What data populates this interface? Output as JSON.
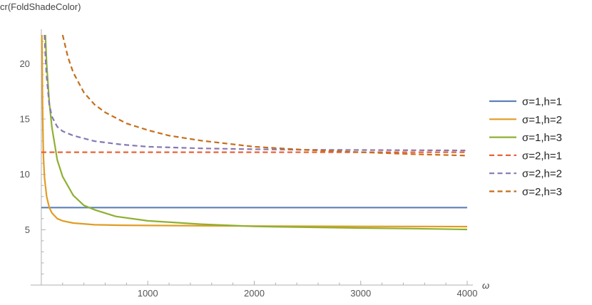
{
  "chart_data": {
    "type": "line",
    "title": "",
    "ylabel": "cr(FoldShadeColor)",
    "xlabel": "ω",
    "xlim": [
      -100,
      4000
    ],
    "ylim": [
      0,
      22.6
    ],
    "x_ticks": [
      {
        "value": 1000,
        "label": "1000"
      },
      {
        "value": 2000,
        "label": "2000"
      },
      {
        "value": 3000,
        "label": "3000"
      },
      {
        "value": 4000,
        "label": "4000"
      }
    ],
    "y_ticks": [
      {
        "value": 5,
        "label": "5"
      },
      {
        "value": 10,
        "label": "10"
      },
      {
        "value": 15,
        "label": "15"
      },
      {
        "value": 20,
        "label": "20"
      }
    ],
    "grid": false,
    "legend_position": "right",
    "series": [
      {
        "name": "σ=1,h=1",
        "color": "#5e81b5",
        "dashed": false,
        "x": [
          0,
          4000
        ],
        "y": [
          7.0,
          7.0
        ]
      },
      {
        "name": "σ=1,h=2",
        "color": "#e19c24",
        "dashed": false,
        "x": [
          5,
          8,
          10,
          15,
          20,
          30,
          50,
          75,
          100,
          150,
          200,
          300,
          500,
          750,
          1000,
          1500,
          2000,
          2500,
          3000,
          3500,
          4000
        ],
        "y": [
          22.6,
          20.4,
          17.6,
          13.9,
          11.6,
          9.7,
          8.0,
          7.0,
          6.5,
          6.0,
          5.8,
          5.6,
          5.45,
          5.4,
          5.38,
          5.36,
          5.33,
          5.31,
          5.3,
          5.29,
          5.28
        ]
      },
      {
        "name": "σ=1,h=3",
        "color": "#8fb032",
        "dashed": false,
        "x": [
          38,
          50,
          75,
          100,
          150,
          200,
          300,
          400,
          500,
          700,
          1000,
          1500,
          2000,
          2500,
          3000,
          3500,
          4000
        ],
        "y": [
          22.6,
          20.0,
          16.5,
          14.2,
          11.3,
          9.8,
          8.1,
          7.2,
          6.8,
          6.2,
          5.8,
          5.5,
          5.3,
          5.22,
          5.15,
          5.1,
          5.02
        ]
      },
      {
        "name": "σ=2,h=1",
        "color": "#eb6235",
        "dashed": true,
        "x": [
          0,
          4000
        ],
        "y": [
          12.0,
          12.0
        ]
      },
      {
        "name": "σ=2,h=2",
        "color": "#8778b3",
        "dashed": true,
        "x": [
          30,
          40,
          50,
          75,
          100,
          150,
          200,
          300,
          500,
          750,
          1000,
          1500,
          2000,
          2500,
          3000,
          3500,
          4000
        ],
        "y": [
          22.6,
          20.4,
          18.8,
          16.3,
          15.2,
          14.3,
          13.9,
          13.5,
          13.0,
          12.7,
          12.5,
          12.35,
          12.27,
          12.22,
          12.2,
          12.18,
          12.16
        ]
      },
      {
        "name": "σ=2,h=3",
        "color": "#c56e1a",
        "dashed": true,
        "x": [
          200,
          250,
          300,
          400,
          500,
          600,
          800,
          1000,
          1200,
          1500,
          2000,
          2500,
          3000,
          3500,
          4000
        ],
        "y": [
          22.6,
          20.6,
          19.2,
          17.4,
          16.3,
          15.6,
          14.6,
          14.0,
          13.5,
          13.05,
          12.5,
          12.2,
          12.0,
          11.82,
          11.7
        ]
      }
    ]
  }
}
